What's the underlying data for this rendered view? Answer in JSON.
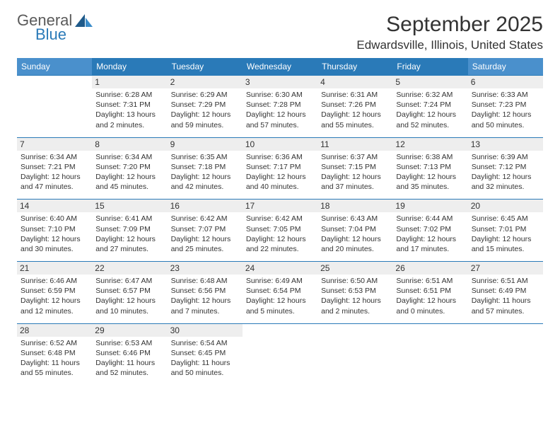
{
  "logo": {
    "word1": "General",
    "word2": "Blue"
  },
  "title": "September 2025",
  "location": "Edwardsville, Illinois, United States",
  "colors": {
    "header_bg": "#2a7ab8",
    "weekend_header_bg": "#4a90cc",
    "row_border": "#2a7ab8",
    "date_bg": "#eeeeee",
    "text": "#333333"
  },
  "day_names": [
    "Sunday",
    "Monday",
    "Tuesday",
    "Wednesday",
    "Thursday",
    "Friday",
    "Saturday"
  ],
  "weeks": [
    [
      null,
      {
        "n": "1",
        "sr": "Sunrise: 6:28 AM",
        "ss": "Sunset: 7:31 PM",
        "d1": "Daylight: 13 hours",
        "d2": "and 2 minutes."
      },
      {
        "n": "2",
        "sr": "Sunrise: 6:29 AM",
        "ss": "Sunset: 7:29 PM",
        "d1": "Daylight: 12 hours",
        "d2": "and 59 minutes."
      },
      {
        "n": "3",
        "sr": "Sunrise: 6:30 AM",
        "ss": "Sunset: 7:28 PM",
        "d1": "Daylight: 12 hours",
        "d2": "and 57 minutes."
      },
      {
        "n": "4",
        "sr": "Sunrise: 6:31 AM",
        "ss": "Sunset: 7:26 PM",
        "d1": "Daylight: 12 hours",
        "d2": "and 55 minutes."
      },
      {
        "n": "5",
        "sr": "Sunrise: 6:32 AM",
        "ss": "Sunset: 7:24 PM",
        "d1": "Daylight: 12 hours",
        "d2": "and 52 minutes."
      },
      {
        "n": "6",
        "sr": "Sunrise: 6:33 AM",
        "ss": "Sunset: 7:23 PM",
        "d1": "Daylight: 12 hours",
        "d2": "and 50 minutes."
      }
    ],
    [
      {
        "n": "7",
        "sr": "Sunrise: 6:34 AM",
        "ss": "Sunset: 7:21 PM",
        "d1": "Daylight: 12 hours",
        "d2": "and 47 minutes."
      },
      {
        "n": "8",
        "sr": "Sunrise: 6:34 AM",
        "ss": "Sunset: 7:20 PM",
        "d1": "Daylight: 12 hours",
        "d2": "and 45 minutes."
      },
      {
        "n": "9",
        "sr": "Sunrise: 6:35 AM",
        "ss": "Sunset: 7:18 PM",
        "d1": "Daylight: 12 hours",
        "d2": "and 42 minutes."
      },
      {
        "n": "10",
        "sr": "Sunrise: 6:36 AM",
        "ss": "Sunset: 7:17 PM",
        "d1": "Daylight: 12 hours",
        "d2": "and 40 minutes."
      },
      {
        "n": "11",
        "sr": "Sunrise: 6:37 AM",
        "ss": "Sunset: 7:15 PM",
        "d1": "Daylight: 12 hours",
        "d2": "and 37 minutes."
      },
      {
        "n": "12",
        "sr": "Sunrise: 6:38 AM",
        "ss": "Sunset: 7:13 PM",
        "d1": "Daylight: 12 hours",
        "d2": "and 35 minutes."
      },
      {
        "n": "13",
        "sr": "Sunrise: 6:39 AM",
        "ss": "Sunset: 7:12 PM",
        "d1": "Daylight: 12 hours",
        "d2": "and 32 minutes."
      }
    ],
    [
      {
        "n": "14",
        "sr": "Sunrise: 6:40 AM",
        "ss": "Sunset: 7:10 PM",
        "d1": "Daylight: 12 hours",
        "d2": "and 30 minutes."
      },
      {
        "n": "15",
        "sr": "Sunrise: 6:41 AM",
        "ss": "Sunset: 7:09 PM",
        "d1": "Daylight: 12 hours",
        "d2": "and 27 minutes."
      },
      {
        "n": "16",
        "sr": "Sunrise: 6:42 AM",
        "ss": "Sunset: 7:07 PM",
        "d1": "Daylight: 12 hours",
        "d2": "and 25 minutes."
      },
      {
        "n": "17",
        "sr": "Sunrise: 6:42 AM",
        "ss": "Sunset: 7:05 PM",
        "d1": "Daylight: 12 hours",
        "d2": "and 22 minutes."
      },
      {
        "n": "18",
        "sr": "Sunrise: 6:43 AM",
        "ss": "Sunset: 7:04 PM",
        "d1": "Daylight: 12 hours",
        "d2": "and 20 minutes."
      },
      {
        "n": "19",
        "sr": "Sunrise: 6:44 AM",
        "ss": "Sunset: 7:02 PM",
        "d1": "Daylight: 12 hours",
        "d2": "and 17 minutes."
      },
      {
        "n": "20",
        "sr": "Sunrise: 6:45 AM",
        "ss": "Sunset: 7:01 PM",
        "d1": "Daylight: 12 hours",
        "d2": "and 15 minutes."
      }
    ],
    [
      {
        "n": "21",
        "sr": "Sunrise: 6:46 AM",
        "ss": "Sunset: 6:59 PM",
        "d1": "Daylight: 12 hours",
        "d2": "and 12 minutes."
      },
      {
        "n": "22",
        "sr": "Sunrise: 6:47 AM",
        "ss": "Sunset: 6:57 PM",
        "d1": "Daylight: 12 hours",
        "d2": "and 10 minutes."
      },
      {
        "n": "23",
        "sr": "Sunrise: 6:48 AM",
        "ss": "Sunset: 6:56 PM",
        "d1": "Daylight: 12 hours",
        "d2": "and 7 minutes."
      },
      {
        "n": "24",
        "sr": "Sunrise: 6:49 AM",
        "ss": "Sunset: 6:54 PM",
        "d1": "Daylight: 12 hours",
        "d2": "and 5 minutes."
      },
      {
        "n": "25",
        "sr": "Sunrise: 6:50 AM",
        "ss": "Sunset: 6:53 PM",
        "d1": "Daylight: 12 hours",
        "d2": "and 2 minutes."
      },
      {
        "n": "26",
        "sr": "Sunrise: 6:51 AM",
        "ss": "Sunset: 6:51 PM",
        "d1": "Daylight: 12 hours",
        "d2": "and 0 minutes."
      },
      {
        "n": "27",
        "sr": "Sunrise: 6:51 AM",
        "ss": "Sunset: 6:49 PM",
        "d1": "Daylight: 11 hours",
        "d2": "and 57 minutes."
      }
    ],
    [
      {
        "n": "28",
        "sr": "Sunrise: 6:52 AM",
        "ss": "Sunset: 6:48 PM",
        "d1": "Daylight: 11 hours",
        "d2": "and 55 minutes."
      },
      {
        "n": "29",
        "sr": "Sunrise: 6:53 AM",
        "ss": "Sunset: 6:46 PM",
        "d1": "Daylight: 11 hours",
        "d2": "and 52 minutes."
      },
      {
        "n": "30",
        "sr": "Sunrise: 6:54 AM",
        "ss": "Sunset: 6:45 PM",
        "d1": "Daylight: 11 hours",
        "d2": "and 50 minutes."
      },
      null,
      null,
      null,
      null
    ]
  ]
}
